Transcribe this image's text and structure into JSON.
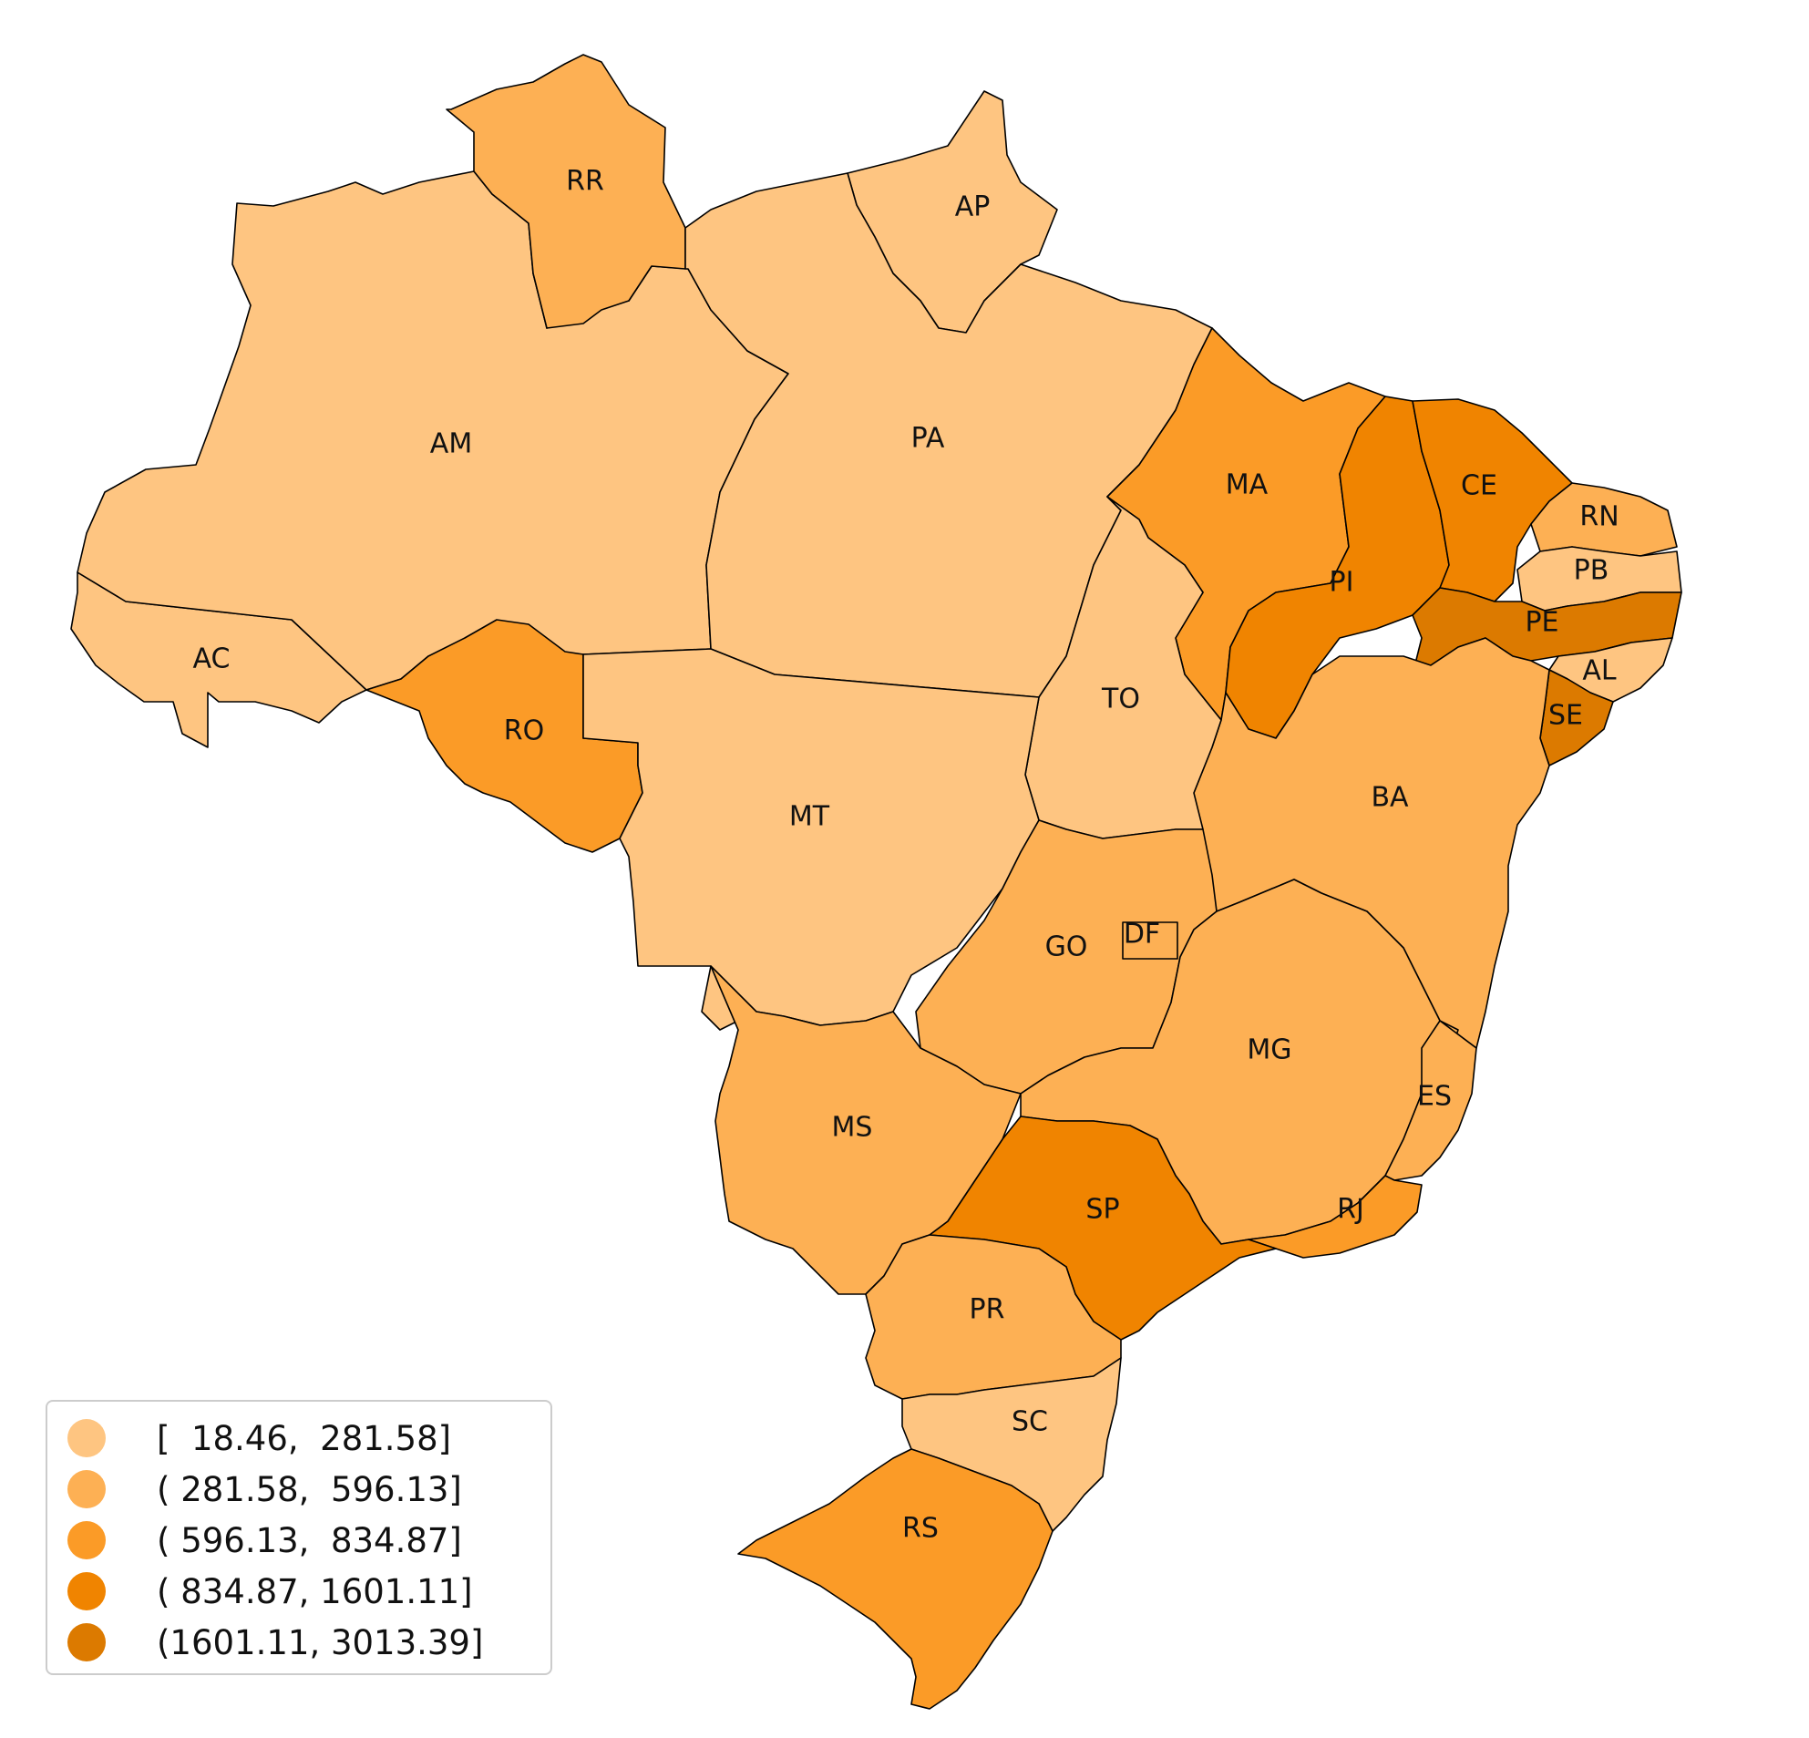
{
  "map": {
    "title": "",
    "legend": {
      "placement": "bottom-left",
      "classes": [
        {
          "label": "[  18.46,  281.58]",
          "color": "#fec581"
        },
        {
          "label": "( 281.58,  596.13]",
          "color": "#fdb054"
        },
        {
          "label": "( 596.13,  834.87]",
          "color": "#fb9b27"
        },
        {
          "label": "( 834.87, 1601.11]",
          "color": "#f08400"
        },
        {
          "label": "(1601.11, 3013.39]",
          "color": "#dc7a00"
        }
      ]
    },
    "states": [
      {
        "code": "AC",
        "class": 0
      },
      {
        "code": "AM",
        "class": 0
      },
      {
        "code": "RR",
        "class": 1
      },
      {
        "code": "AP",
        "class": 0
      },
      {
        "code": "PA",
        "class": 0
      },
      {
        "code": "MA",
        "class": 2
      },
      {
        "code": "PI",
        "class": 3
      },
      {
        "code": "CE",
        "class": 3
      },
      {
        "code": "RN",
        "class": 1
      },
      {
        "code": "PB",
        "class": 0
      },
      {
        "code": "PE",
        "class": 4
      },
      {
        "code": "AL",
        "class": 0
      },
      {
        "code": "SE",
        "class": 4
      },
      {
        "code": "BA",
        "class": 1
      },
      {
        "code": "TO",
        "class": 0
      },
      {
        "code": "RO",
        "class": 2
      },
      {
        "code": "MT",
        "class": 0
      },
      {
        "code": "GO",
        "class": 1
      },
      {
        "code": "DF",
        "class": 1
      },
      {
        "code": "MG",
        "class": 1
      },
      {
        "code": "ES",
        "class": 1
      },
      {
        "code": "RJ",
        "class": 2
      },
      {
        "code": "SP",
        "class": 3
      },
      {
        "code": "MS",
        "class": 1
      },
      {
        "code": "PR",
        "class": 1
      },
      {
        "code": "SC",
        "class": 0
      },
      {
        "code": "RS",
        "class": 2
      }
    ]
  }
}
